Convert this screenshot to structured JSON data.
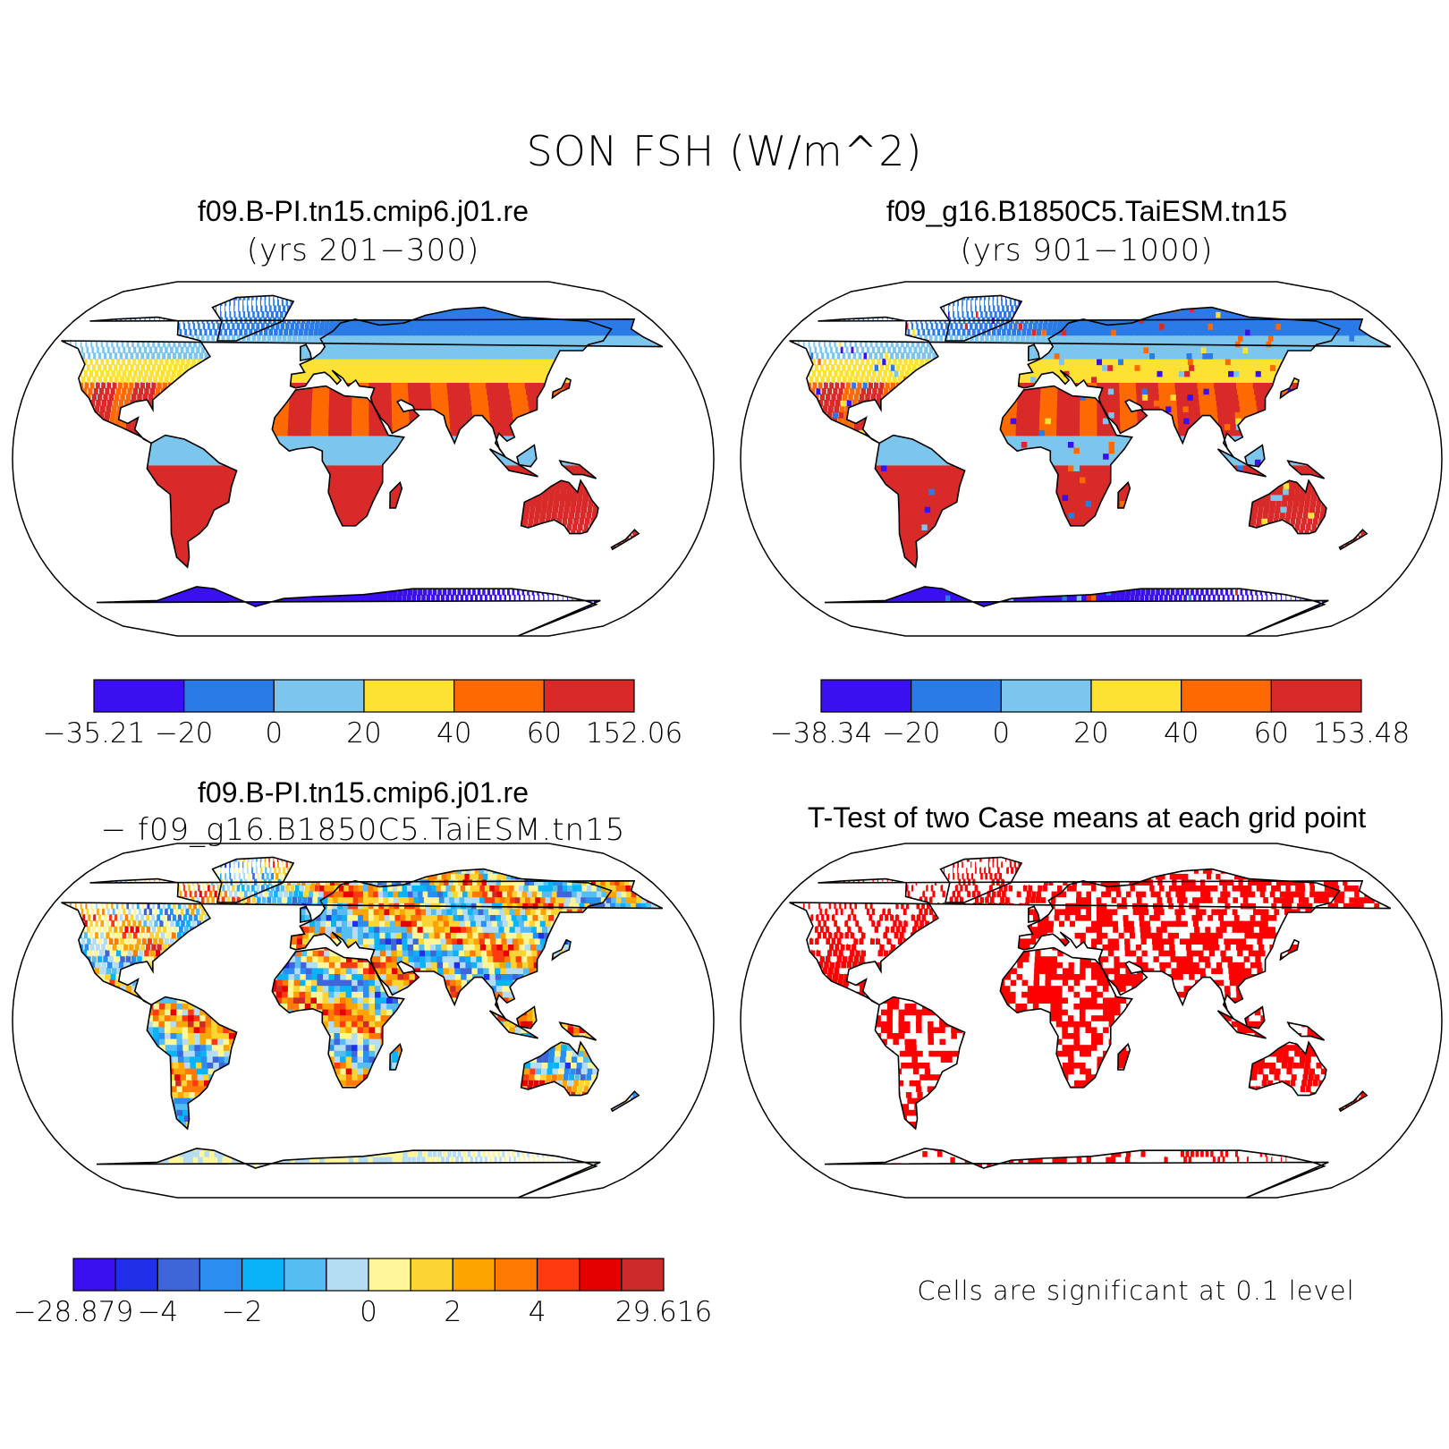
{
  "title": "SON FSH (W/m^2)",
  "panels": [
    {
      "id": "case1",
      "case_name": "f09.B-PI.tn15.cmip6.j01.re",
      "subtitle": "(yrs 201−300)",
      "palette": "climatology"
    },
    {
      "id": "case2",
      "case_name": "f09_g16.B1850C5.TaiESM.tn15",
      "subtitle": "(yrs 901−1000)",
      "palette": "climatology"
    },
    {
      "id": "diff",
      "case_name": "f09.B-PI.tn15.cmip6.j01.re",
      "subtitle": "− f09_g16.B1850C5.TaiESM.tn15",
      "palette": "difference"
    },
    {
      "id": "ttest",
      "case_name": "T-Test of two Case means at each grid point",
      "subtitle": "",
      "palette": "significance"
    }
  ],
  "colorbars": [
    {
      "id": "cb-case1",
      "colors": [
        "#3a10f0",
        "#2b7be6",
        "#7cc6ee",
        "#fde234",
        "#ff6a00",
        "#d92a2a"
      ],
      "labels": [
        "−35.21",
        "−20",
        "0",
        "20",
        "40",
        "60",
        "152.06"
      ]
    },
    {
      "id": "cb-case2",
      "colors": [
        "#3a10f0",
        "#2b7be6",
        "#7cc6ee",
        "#fde234",
        "#ff6a00",
        "#d92a2a"
      ],
      "labels": [
        "−38.34",
        "−20",
        "0",
        "20",
        "40",
        "60",
        "153.48"
      ]
    },
    {
      "id": "cb-diff",
      "colors": [
        "#3a10f0",
        "#1f30e8",
        "#3f66d8",
        "#2a8ef0",
        "#0ab2f8",
        "#56bdf2",
        "#b4dcf2",
        "#fff599",
        "#fcd433",
        "#fca400",
        "#ff7a00",
        "#ff3a10",
        "#e50000",
        "#cd2b2b"
      ],
      "labels": [
        "−28.879",
        "−4",
        "−2",
        "0",
        "2",
        "4",
        "29.616"
      ],
      "label_positions": [
        0,
        2,
        4,
        7,
        9,
        11,
        14
      ]
    }
  ],
  "significance_note": "Cells are significant at 0.1 level",
  "colors": {
    "land_outline": "#000000",
    "significant": "#ff0000"
  }
}
